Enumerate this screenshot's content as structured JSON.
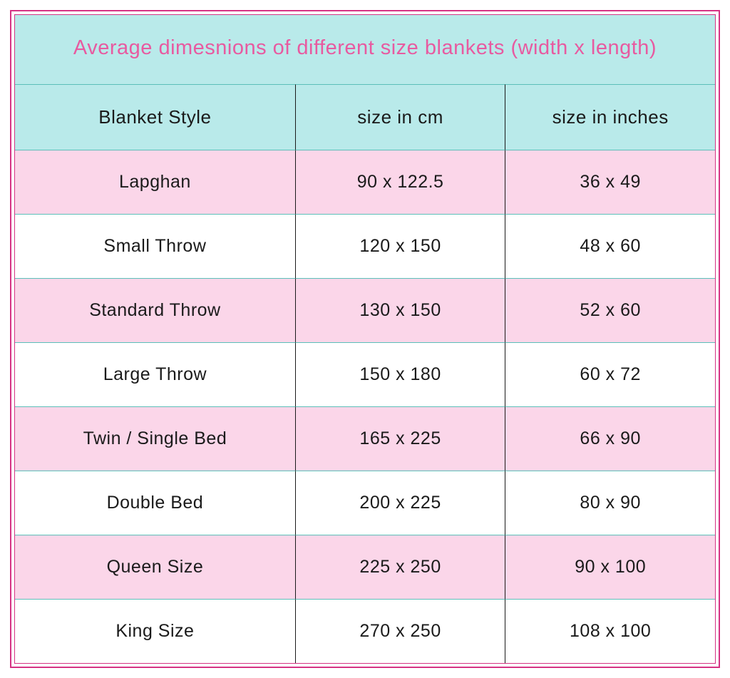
{
  "colors": {
    "outer_border": "#d63384",
    "cell_border": "#5cbfb9",
    "title_bg": "#b9eaea",
    "title_text": "#e85aa0",
    "header_bg": "#b9eaea",
    "row_odd_bg": "#fbd6e9",
    "row_even_bg": "#ffffff",
    "body_text": "#1a1a1a"
  },
  "table": {
    "type": "table",
    "title": "Average dimesnions of different size blankets (width x length)",
    "columns": [
      "Blanket Style",
      "size in cm",
      "size in inches"
    ],
    "rows": [
      [
        "Lapghan",
        "90 x 122.5",
        "36 x 49"
      ],
      [
        "Small Throw",
        "120 x 150",
        "48 x 60"
      ],
      [
        "Standard Throw",
        "130 x 150",
        "52 x 60"
      ],
      [
        "Large Throw",
        "150 x 180",
        "60 x 72"
      ],
      [
        "Twin / Single Bed",
        "165 x 225",
        "66 x 90"
      ],
      [
        "Double Bed",
        "200 x 225",
        "80 x 90"
      ],
      [
        "Queen Size",
        "225 x 250",
        "90 x 100"
      ],
      [
        "King Size",
        "270 x 250",
        "108 x 100"
      ]
    ]
  }
}
